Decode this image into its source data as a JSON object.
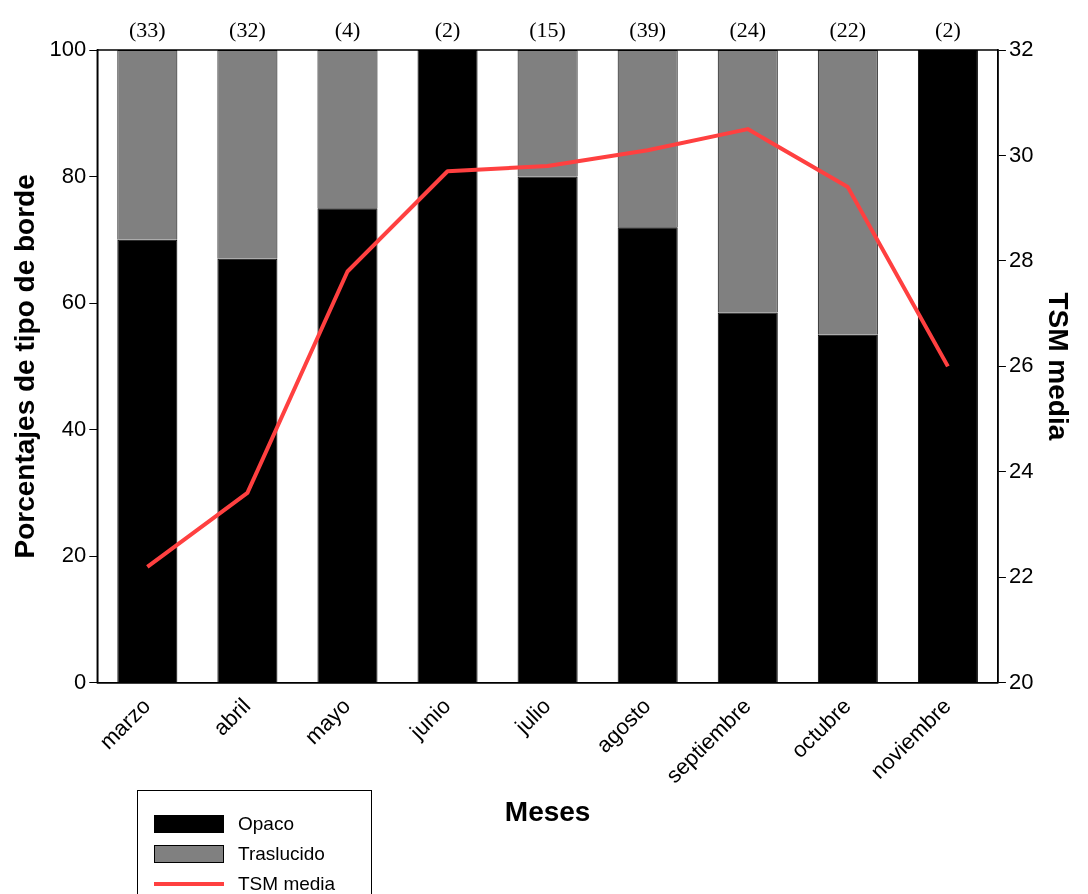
{
  "chart_data": {
    "type": "bar",
    "stacked": true,
    "xlabel": "Meses",
    "ylabel": "Porcentajes de tipo de borde",
    "y2label": "TSM media",
    "categories": [
      "marzo",
      "abril",
      "mayo",
      "junio",
      "julio",
      "agosto",
      "septiembre",
      "octubre",
      "noviembre"
    ],
    "series": [
      {
        "name": "Opaco",
        "color": "#000000",
        "values": [
          70,
          67,
          75,
          100,
          80,
          72,
          58.5,
          55,
          100
        ]
      },
      {
        "name": "Traslucido",
        "color": "#808080",
        "values": [
          30,
          33,
          25,
          0,
          20,
          28,
          41.5,
          45,
          0
        ]
      },
      {
        "name": "TSM media",
        "type": "line",
        "axis": "y2",
        "color": "#ff4040",
        "values": [
          22.2,
          23.6,
          27.8,
          29.7,
          29.8,
          30.1,
          30.5,
          29.4,
          26.0
        ]
      }
    ],
    "ylim": [
      0,
      100
    ],
    "yticks": [
      0,
      20,
      40,
      60,
      80,
      100
    ],
    "y2lim": [
      20,
      32
    ],
    "y2ticks": [
      20,
      22,
      24,
      26,
      28,
      30,
      32
    ],
    "grid": false,
    "legend": "bottom left",
    "marker": "none",
    "line_style": "solid",
    "annotations": [
      {
        "text": "(33)",
        "x": "marzo",
        "y": 100
      },
      {
        "text": "(32)",
        "x": "abril",
        "y": 100
      },
      {
        "text": "(4)",
        "x": "mayo",
        "y": 100
      },
      {
        "text": "(2)",
        "x": "junio",
        "y": 100
      },
      {
        "text": "(15)",
        "x": "julio",
        "y": 100
      },
      {
        "text": "(39)",
        "x": "agosto",
        "y": 100
      },
      {
        "text": "(24)",
        "x": "septiembre",
        "y": 100
      },
      {
        "text": "(22)",
        "x": "octubre",
        "y": 100
      },
      {
        "text": "(2)",
        "x": "noviembre",
        "y": 100
      }
    ]
  }
}
